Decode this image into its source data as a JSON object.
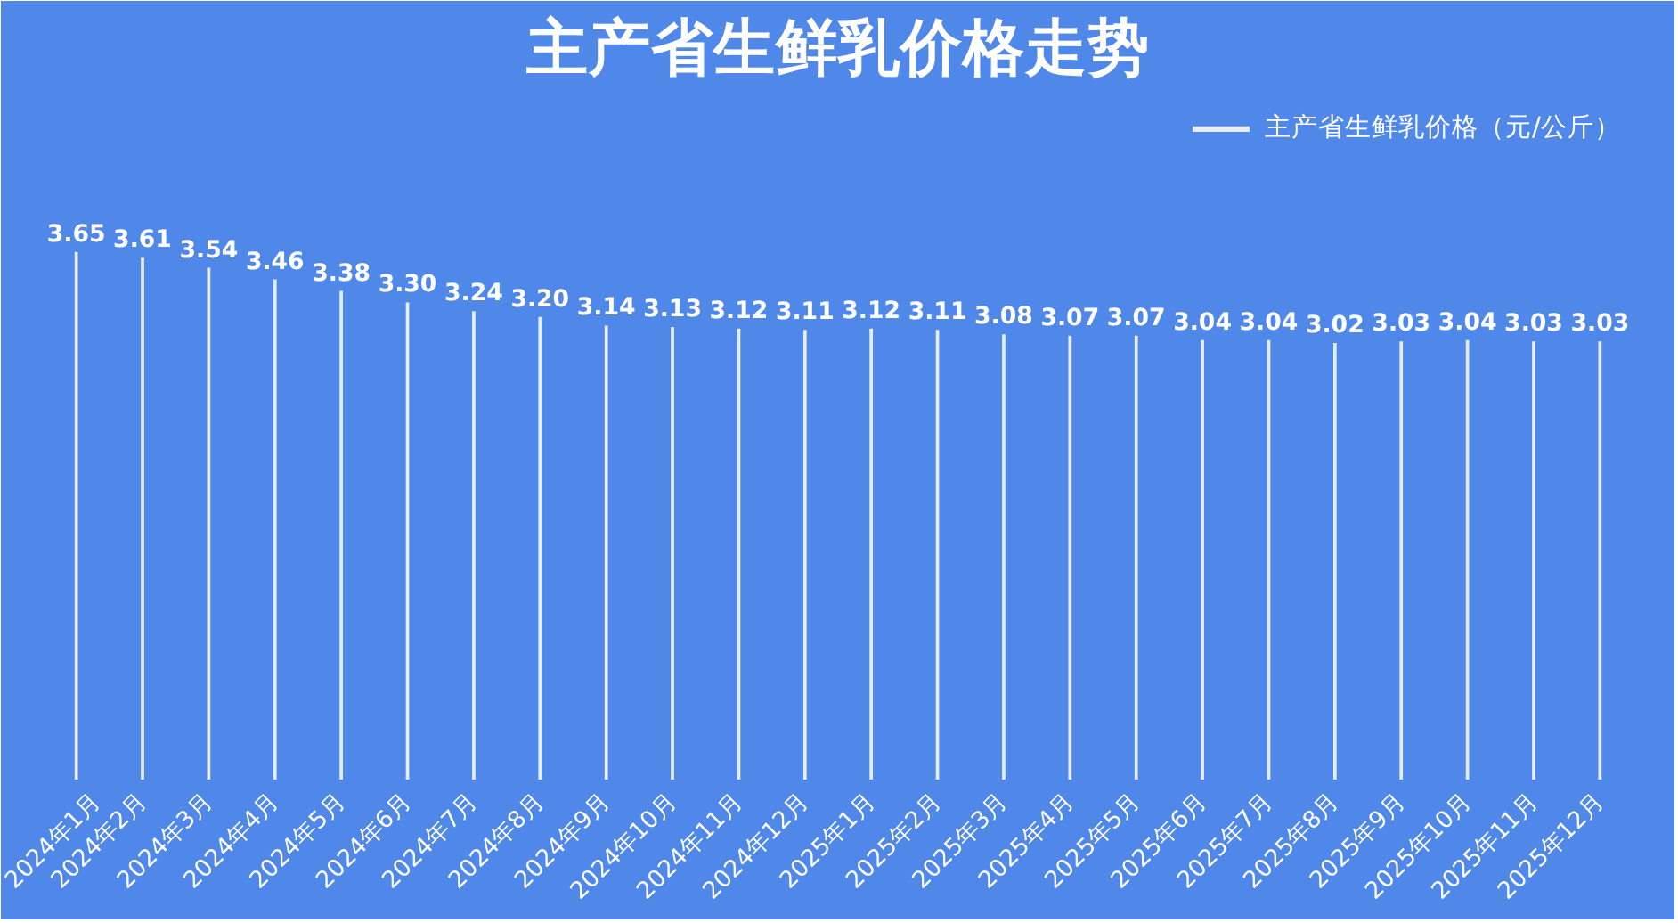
{
  "chart_data": {
    "type": "bar",
    "title": "主产省生鲜乳价格走势",
    "categories": [
      "2024年1月",
      "2024年2月",
      "2024年3月",
      "2024年4月",
      "2024年5月",
      "2024年6月",
      "2024年7月",
      "2024年8月",
      "2024年9月",
      "2024年10月",
      "2024年11月",
      "2024年12月",
      "2025年1月",
      "2025年2月",
      "2025年3月",
      "2025年4月",
      "2025年5月",
      "2025年6月",
      "2025年7月",
      "2025年8月",
      "2025年9月",
      "2025年10月",
      "2025年11月",
      "2025年12月"
    ],
    "series": [
      {
        "name": "主产省生鲜乳价格（元/公斤）",
        "color": "#ffffff",
        "values": [
          3.65,
          3.61,
          3.54,
          3.46,
          3.38,
          3.3,
          3.24,
          3.2,
          3.14,
          3.13,
          3.12,
          3.11,
          3.12,
          3.11,
          3.08,
          3.07,
          3.07,
          3.04,
          3.04,
          3.02,
          3.03,
          3.04,
          3.03,
          3.03
        ],
        "value_labels": [
          "3.65",
          "3.61",
          "3.54",
          "3.46",
          "3.38",
          "3.30",
          "3.24",
          "3.20",
          "3.14",
          "3.13",
          "3.12",
          "3.11",
          "3.12",
          "3.11",
          "3.08",
          "3.07",
          "3.07",
          "3.04",
          "3.04",
          "3.02",
          "3.03",
          "3.04",
          "3.03",
          "3.03"
        ]
      }
    ],
    "legend": "top right",
    "grid": false
  }
}
